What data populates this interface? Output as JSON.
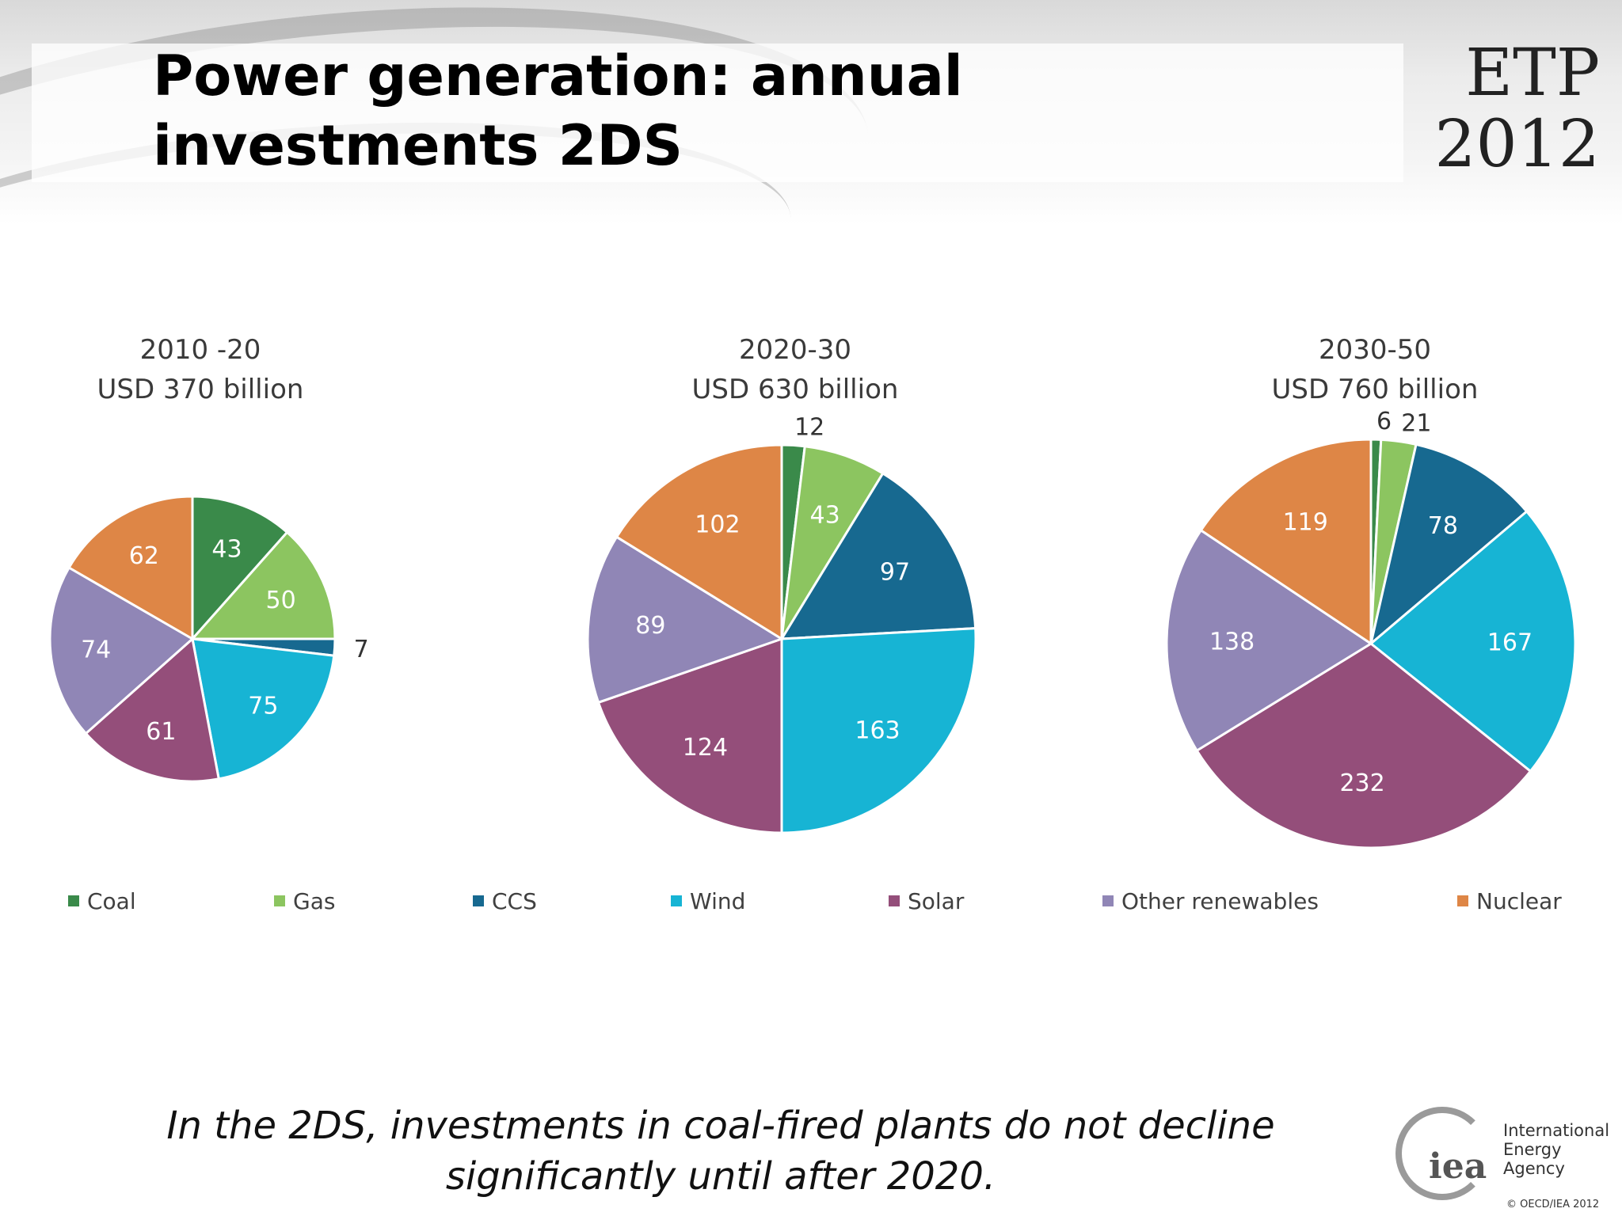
{
  "slide": {
    "title": "Power generation: annual investments 2DS",
    "subtitle": "In the 2DS, investments in coal-fired plants do not decline significantly until after 2020.",
    "logo_top": "ETP",
    "logo_bottom": "2012",
    "org_logo_text": "iea",
    "org_name_line1": "International",
    "org_name_line2": "Energy Agency",
    "copyright": "© OECD/IEA 2012"
  },
  "legend": [
    {
      "label": "Coal",
      "color": "#3a8a4a"
    },
    {
      "label": "Gas",
      "color": "#8cc560"
    },
    {
      "label": "CCS",
      "color": "#176990"
    },
    {
      "label": "Wind",
      "color": "#17b4d4"
    },
    {
      "label": "Solar",
      "color": "#944e7a"
    },
    {
      "label": "Other renewables",
      "color": "#9086b6"
    },
    {
      "label": "Nuclear",
      "color": "#de8646"
    }
  ],
  "chart_data": [
    {
      "type": "pie",
      "title": "2010 -20",
      "subtitle": "USD 370 billion",
      "categories": [
        "Coal",
        "Gas",
        "CCS",
        "Wind",
        "Solar",
        "Other renewables",
        "Nuclear"
      ],
      "values": [
        43,
        50,
        7,
        75,
        61,
        74,
        62
      ],
      "labels": [
        "43",
        "50",
        "7",
        "75",
        "61",
        "74",
        "62"
      ]
    },
    {
      "type": "pie",
      "title": "2020-30",
      "subtitle": "USD 630 billion",
      "categories": [
        "Coal",
        "Gas",
        "CCS",
        "Wind",
        "Solar",
        "Other renewables",
        "Nuclear"
      ],
      "values": [
        12,
        43,
        97,
        163,
        124,
        89,
        102
      ],
      "labels": [
        "12",
        "43",
        "97",
        "163",
        "124",
        "89",
        "102"
      ]
    },
    {
      "type": "pie",
      "title": "2030-50",
      "subtitle": "USD 760 billion",
      "categories": [
        "Coal",
        "Gas",
        "CCS",
        "Wind",
        "Solar",
        "Other renewables",
        "Nuclear"
      ],
      "values": [
        6,
        21,
        78,
        167,
        232,
        138,
        119
      ],
      "labels": [
        "6",
        "21",
        "78",
        "167",
        "232",
        "138",
        "119"
      ]
    }
  ]
}
